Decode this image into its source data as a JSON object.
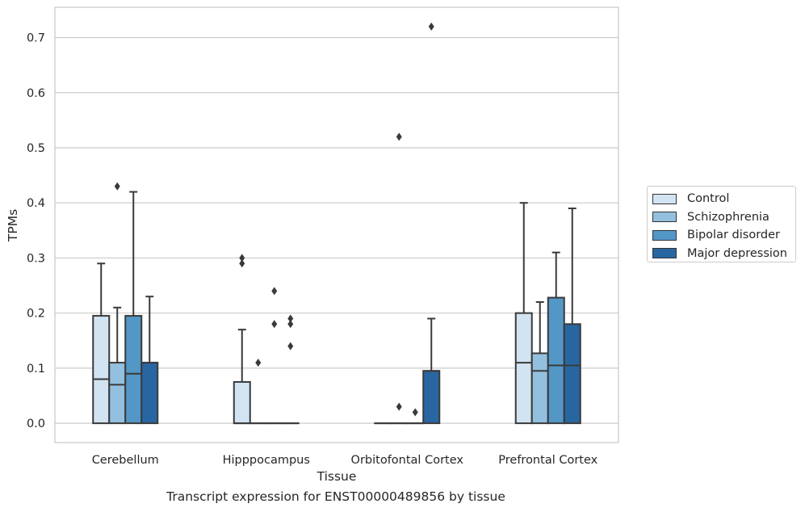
{
  "chart_data": {
    "type": "boxplot",
    "xlabel": "Tissue",
    "ylabel": "TPMs",
    "ylim": [
      -0.035,
      0.755
    ],
    "yticks": [
      "0.0",
      "0.1",
      "0.2",
      "0.3",
      "0.4",
      "0.5",
      "0.6",
      "0.7"
    ],
    "grid": true,
    "legend_position": "right",
    "categories": [
      "Cerebellum",
      "Hipppocampus",
      "Orbitofontal Cortex",
      "Prefrontal Cortex"
    ],
    "series": [
      {
        "name": "Control",
        "color": "#d2e3f2",
        "boxes": [
          {
            "q1": 0.0,
            "median": 0.08,
            "q3": 0.195,
            "whisker_low": 0.0,
            "whisker_high": 0.29,
            "outliers": []
          },
          {
            "q1": 0.0,
            "median": 0.0,
            "q3": 0.075,
            "whisker_low": 0.0,
            "whisker_high": 0.17,
            "outliers": [
              0.29,
              0.3
            ]
          },
          {
            "q1": 0.0,
            "median": 0.0,
            "q3": 0.0,
            "whisker_low": 0.0,
            "whisker_high": 0.0,
            "outliers": []
          },
          {
            "q1": 0.0,
            "median": 0.11,
            "q3": 0.2,
            "whisker_low": 0.0,
            "whisker_high": 0.4,
            "outliers": []
          }
        ]
      },
      {
        "name": "Schizophrenia",
        "color": "#93c0de",
        "boxes": [
          {
            "q1": 0.0,
            "median": 0.07,
            "q3": 0.11,
            "whisker_low": 0.0,
            "whisker_high": 0.21,
            "outliers": [
              0.43
            ]
          },
          {
            "q1": 0.0,
            "median": 0.0,
            "q3": 0.0,
            "whisker_low": 0.0,
            "whisker_high": 0.0,
            "outliers": [
              0.11
            ]
          },
          {
            "q1": 0.0,
            "median": 0.0,
            "q3": 0.0,
            "whisker_low": 0.0,
            "whisker_high": 0.0,
            "outliers": [
              0.52,
              0.03
            ]
          },
          {
            "q1": 0.0,
            "median": 0.095,
            "q3": 0.127,
            "whisker_low": 0.0,
            "whisker_high": 0.22,
            "outliers": []
          }
        ]
      },
      {
        "name": "Bipolar disorder",
        "color": "#5397c7",
        "boxes": [
          {
            "q1": 0.0,
            "median": 0.09,
            "q3": 0.195,
            "whisker_low": 0.0,
            "whisker_high": 0.42,
            "outliers": []
          },
          {
            "q1": 0.0,
            "median": 0.0,
            "q3": 0.0,
            "whisker_low": 0.0,
            "whisker_high": 0.0,
            "outliers": [
              0.24,
              0.18
            ]
          },
          {
            "q1": 0.0,
            "median": 0.0,
            "q3": 0.0,
            "whisker_low": 0.0,
            "whisker_high": 0.0,
            "outliers": [
              0.02
            ]
          },
          {
            "q1": 0.0,
            "median": 0.105,
            "q3": 0.228,
            "whisker_low": 0.0,
            "whisker_high": 0.31,
            "outliers": []
          }
        ]
      },
      {
        "name": "Major depression",
        "color": "#2866a2",
        "boxes": [
          {
            "q1": 0.0,
            "median": 0.11,
            "q3": 0.11,
            "whisker_low": 0.0,
            "whisker_high": 0.23,
            "outliers": []
          },
          {
            "q1": 0.0,
            "median": 0.0,
            "q3": 0.0,
            "whisker_low": 0.0,
            "whisker_high": 0.0,
            "outliers": [
              0.19,
              0.18,
              0.14
            ]
          },
          {
            "q1": 0.0,
            "median": 0.095,
            "q3": 0.095,
            "whisker_low": 0.0,
            "whisker_high": 0.19,
            "outliers": [
              0.72
            ]
          },
          {
            "q1": 0.0,
            "median": 0.105,
            "q3": 0.18,
            "whisker_low": 0.0,
            "whisker_high": 0.39,
            "outliers": []
          }
        ]
      }
    ]
  },
  "caption": "Transcript expression for ENST00000489856 by tissue"
}
